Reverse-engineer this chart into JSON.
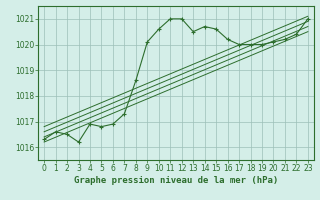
{
  "title": "Graphe pression niveau de la mer (hPa)",
  "bg_color": "#c8e8d0",
  "plot_bg_color": "#d4eee8",
  "grid_color": "#9dbfb8",
  "line_color": "#2d6e2d",
  "spine_color": "#2d6e2d",
  "xlim": [
    -0.5,
    23.5
  ],
  "ylim": [
    1015.5,
    1021.5
  ],
  "yticks": [
    1016,
    1017,
    1018,
    1019,
    1020,
    1021
  ],
  "xticks": [
    0,
    1,
    2,
    3,
    4,
    5,
    6,
    7,
    8,
    9,
    10,
    11,
    12,
    13,
    14,
    15,
    16,
    17,
    18,
    19,
    20,
    21,
    22,
    23
  ],
  "main_x": [
    0,
    1,
    2,
    3,
    4,
    5,
    6,
    7,
    8,
    9,
    10,
    11,
    12,
    13,
    14,
    15,
    16,
    17,
    18,
    19,
    20,
    21,
    22,
    23
  ],
  "main_y": [
    1016.3,
    1016.6,
    1016.5,
    1016.2,
    1016.9,
    1016.8,
    1016.9,
    1017.3,
    1018.6,
    1020.1,
    1020.6,
    1021.0,
    1021.0,
    1020.5,
    1020.7,
    1020.6,
    1020.2,
    1020.0,
    1020.0,
    1020.0,
    1020.1,
    1020.2,
    1020.4,
    1021.0
  ],
  "trend_lines": [
    {
      "x": [
        0,
        23
      ],
      "y": [
        1016.2,
        1020.5
      ]
    },
    {
      "x": [
        0,
        23
      ],
      "y": [
        1016.4,
        1020.7
      ]
    },
    {
      "x": [
        0,
        23
      ],
      "y": [
        1016.6,
        1020.9
      ]
    },
    {
      "x": [
        0,
        23
      ],
      "y": [
        1016.8,
        1021.1
      ]
    }
  ],
  "xlabel_fontsize": 6.5,
  "tick_fontsize": 5.5
}
